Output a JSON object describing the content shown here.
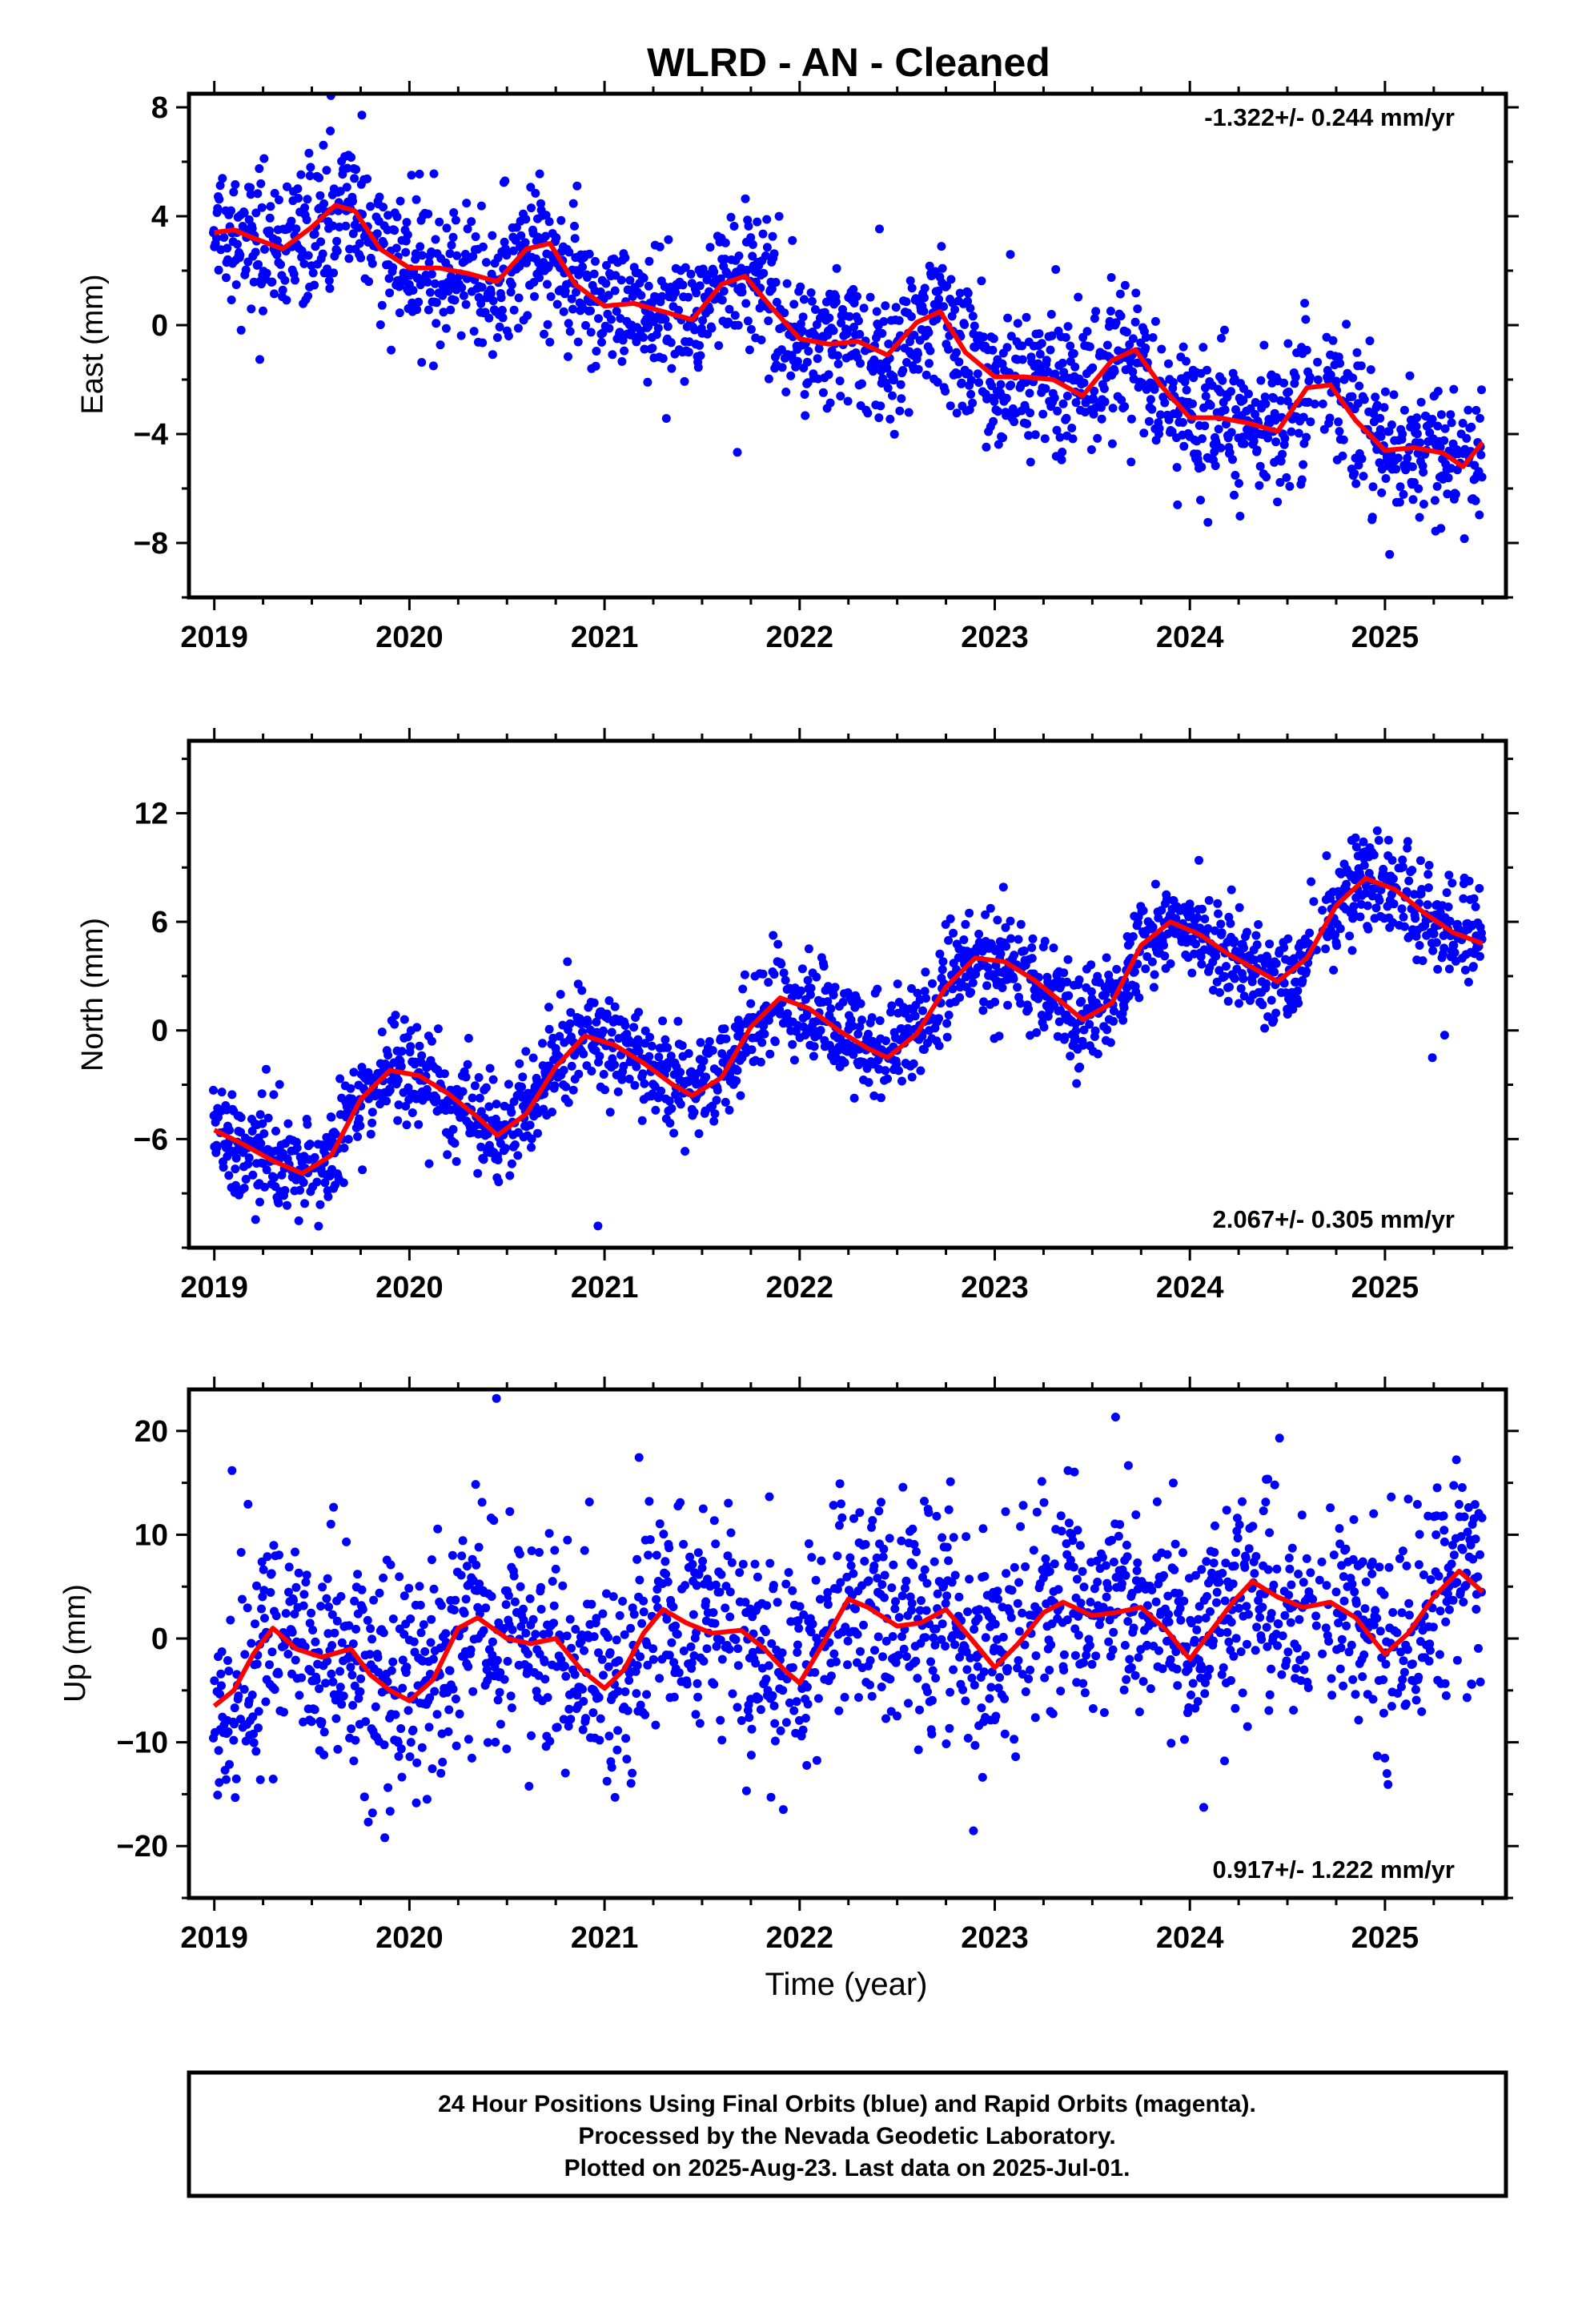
{
  "title": "WLRD  - AN - Cleaned",
  "xlabel": "Time (year)",
  "footer": {
    "line1": "24 Hour Positions Using Final Orbits (blue) and Rapid Orbits (magenta).",
    "line2": "Processed by the Nevada Geodetic Laboratory.",
    "line3": "Plotted on 2025-Aug-23. Last data on 2025-Jul-01."
  },
  "colors": {
    "points": "#0000ff",
    "model": "#ff0000",
    "axes": "#000000"
  },
  "chart_data": [
    {
      "type": "scatter",
      "ylabel": "East (mm)",
      "rate_label": "-1.322+/- 0.244 mm/yr",
      "rate_placement": "top-right",
      "xlim": [
        2018.87,
        2025.62
      ],
      "ylim": [
        -10.0,
        8.5
      ],
      "x_ticks": [
        2019,
        2020,
        2021,
        2022,
        2023,
        2024,
        2025
      ],
      "x_tick_labels": [
        "2019",
        "2020",
        "2021",
        "2022",
        "2023",
        "2024",
        "2025"
      ],
      "y_ticks": [
        -8,
        -4,
        0,
        4,
        8
      ],
      "y_tick_labels": [
        "−8",
        "−4",
        "0",
        "4",
        "8"
      ],
      "grid": false,
      "series": [
        {
          "role": "trend",
          "x": [
            2019.0,
            2019.1,
            2019.2,
            2019.35,
            2019.5,
            2019.62,
            2019.72,
            2019.85,
            2020.0,
            2020.15,
            2020.3,
            2020.45,
            2020.6,
            2020.72,
            2020.85,
            2021.0,
            2021.15,
            2021.3,
            2021.45,
            2021.6,
            2021.72,
            2021.85,
            2022.0,
            2022.15,
            2022.3,
            2022.45,
            2022.6,
            2022.72,
            2022.85,
            2023.0,
            2023.15,
            2023.3,
            2023.45,
            2023.6,
            2023.72,
            2023.85,
            2024.0,
            2024.15,
            2024.3,
            2024.45,
            2024.6,
            2024.72,
            2024.85,
            2025.0,
            2025.15,
            2025.3,
            2025.4,
            2025.5
          ],
          "y": [
            3.4,
            3.5,
            3.2,
            2.8,
            3.6,
            4.4,
            4.2,
            2.8,
            2.1,
            2.1,
            1.9,
            1.6,
            2.8,
            3.0,
            1.5,
            0.7,
            0.8,
            0.5,
            0.2,
            1.5,
            1.8,
            0.7,
            -0.5,
            -0.7,
            -0.6,
            -1.1,
            0.1,
            0.5,
            -1.0,
            -1.9,
            -1.9,
            -2.0,
            -2.6,
            -1.3,
            -0.9,
            -2.2,
            -3.4,
            -3.4,
            -3.6,
            -3.9,
            -2.3,
            -2.2,
            -3.5,
            -4.6,
            -4.5,
            -4.7,
            -5.2,
            -4.3
          ]
        }
      ]
    },
    {
      "type": "scatter",
      "ylabel": "North (mm)",
      "rate_label": "2.067+/- 0.305 mm/yr",
      "rate_placement": "bottom-right",
      "xlim": [
        2018.87,
        2025.62
      ],
      "ylim": [
        -12.0,
        16.0
      ],
      "x_ticks": [
        2019,
        2020,
        2021,
        2022,
        2023,
        2024,
        2025
      ],
      "x_tick_labels": [
        "2019",
        "2020",
        "2021",
        "2022",
        "2023",
        "2024",
        "2025"
      ],
      "y_ticks": [
        -6,
        0,
        6,
        12
      ],
      "y_tick_labels": [
        "−6",
        "0",
        "6",
        "12"
      ],
      "grid": false,
      "series": [
        {
          "role": "trend",
          "x": [
            2019.0,
            2019.15,
            2019.3,
            2019.45,
            2019.6,
            2019.75,
            2019.9,
            2020.05,
            2020.2,
            2020.35,
            2020.45,
            2020.6,
            2020.75,
            2020.9,
            2021.05,
            2021.2,
            2021.35,
            2021.45,
            2021.6,
            2021.75,
            2021.9,
            2022.05,
            2022.2,
            2022.35,
            2022.45,
            2022.6,
            2022.75,
            2022.9,
            2023.05,
            2023.2,
            2023.35,
            2023.45,
            2023.6,
            2023.75,
            2023.9,
            2024.05,
            2024.2,
            2024.35,
            2024.45,
            2024.6,
            2024.75,
            2024.9,
            2025.05,
            2025.2,
            2025.35,
            2025.5
          ],
          "y": [
            -5.5,
            -6.3,
            -7.2,
            -7.9,
            -6.9,
            -3.8,
            -2.2,
            -2.5,
            -3.5,
            -4.8,
            -5.8,
            -4.6,
            -2.0,
            -0.3,
            -0.8,
            -1.8,
            -3.0,
            -3.6,
            -2.6,
            0.2,
            1.8,
            1.2,
            0.0,
            -1.0,
            -1.5,
            -0.2,
            2.4,
            4.0,
            3.8,
            2.8,
            1.5,
            0.6,
            1.5,
            4.7,
            6.0,
            5.3,
            4.2,
            3.3,
            2.7,
            4.0,
            6.9,
            8.4,
            7.8,
            6.5,
            5.4,
            4.8
          ]
        }
      ]
    },
    {
      "type": "scatter",
      "ylabel": "Up (mm)",
      "rate_label": "0.917+/- 1.222 mm/yr",
      "rate_placement": "bottom-right",
      "xlim": [
        2018.87,
        2025.62
      ],
      "ylim": [
        -25.0,
        24.0
      ],
      "x_ticks": [
        2019,
        2020,
        2021,
        2022,
        2023,
        2024,
        2025
      ],
      "x_tick_labels": [
        "2019",
        "2020",
        "2021",
        "2022",
        "2023",
        "2024",
        "2025"
      ],
      "y_ticks": [
        -20,
        -10,
        0,
        10,
        20
      ],
      "y_tick_labels": [
        "−20",
        "−10",
        "0",
        "10",
        "20"
      ],
      "grid": false,
      "series": [
        {
          "role": "trend",
          "x": [
            2019.0,
            2019.1,
            2019.2,
            2019.3,
            2019.42,
            2019.55,
            2019.7,
            2019.8,
            2019.9,
            2020.0,
            2020.12,
            2020.25,
            2020.35,
            2020.5,
            2020.62,
            2020.75,
            2020.88,
            2021.0,
            2021.1,
            2021.2,
            2021.3,
            2021.42,
            2021.55,
            2021.7,
            2021.82,
            2021.92,
            2022.0,
            2022.12,
            2022.25,
            2022.35,
            2022.5,
            2022.62,
            2022.75,
            2022.9,
            2023.0,
            2023.12,
            2023.25,
            2023.35,
            2023.5,
            2023.62,
            2023.75,
            2023.88,
            2024.0,
            2024.1,
            2024.22,
            2024.32,
            2024.45,
            2024.58,
            2024.72,
            2024.85,
            2025.0,
            2025.12,
            2025.25,
            2025.38,
            2025.5
          ],
          "y": [
            -6.5,
            -5.0,
            -1.5,
            1.0,
            -1.0,
            -1.8,
            -1.0,
            -3.5,
            -5.0,
            -6.0,
            -4.0,
            1.0,
            2.0,
            0.0,
            -0.5,
            0.0,
            -3.0,
            -4.8,
            -3.0,
            0.5,
            2.8,
            1.5,
            0.5,
            0.8,
            -1.0,
            -3.0,
            -4.3,
            -0.5,
            3.8,
            3.0,
            1.2,
            1.5,
            2.8,
            -0.5,
            -2.8,
            -0.5,
            2.5,
            3.5,
            2.2,
            2.5,
            3.0,
            0.8,
            -2.0,
            0.5,
            3.5,
            5.5,
            4.0,
            3.0,
            3.5,
            2.0,
            -1.5,
            0.5,
            4.0,
            6.5,
            4.5
          ]
        }
      ]
    }
  ]
}
